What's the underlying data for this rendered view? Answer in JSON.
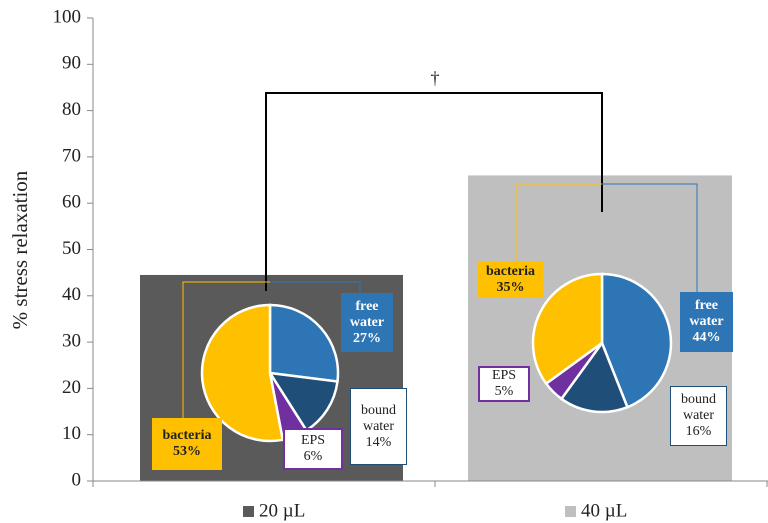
{
  "chart_data": [
    {
      "type": "bar",
      "y_label": "% stress relaxation",
      "categories": [
        null
      ],
      "series": [
        {
          "name": "20 µL",
          "color": "#5a5a5a",
          "values": [
            44.5
          ]
        },
        {
          "name": "40 µL",
          "color": "#bfbfbf",
          "values": [
            66
          ]
        }
      ],
      "ylim": [
        0,
        100
      ],
      "yticks": [
        0,
        10,
        20,
        30,
        40,
        50,
        60,
        70,
        80,
        90,
        100
      ],
      "annotation": "†"
    },
    {
      "type": "pie",
      "categories": [
        "free water",
        "bound water",
        "EPS",
        "bacteria"
      ],
      "values": [
        27,
        14,
        6,
        53
      ],
      "value_labels": [
        "27%",
        "14%",
        "6%",
        "53%"
      ],
      "colors": [
        "#2e75b6",
        "#1f4e79",
        "#7030a0",
        "#ffc000"
      ]
    },
    {
      "type": "pie",
      "categories": [
        "free water",
        "bound water",
        "EPS",
        "bacteria"
      ],
      "values": [
        44,
        16,
        5,
        35
      ],
      "value_labels": [
        "44%",
        "16%",
        "5%",
        "35%"
      ],
      "colors": [
        "#2e75b6",
        "#1f4e79",
        "#7030a0",
        "#ffc000"
      ]
    }
  ]
}
